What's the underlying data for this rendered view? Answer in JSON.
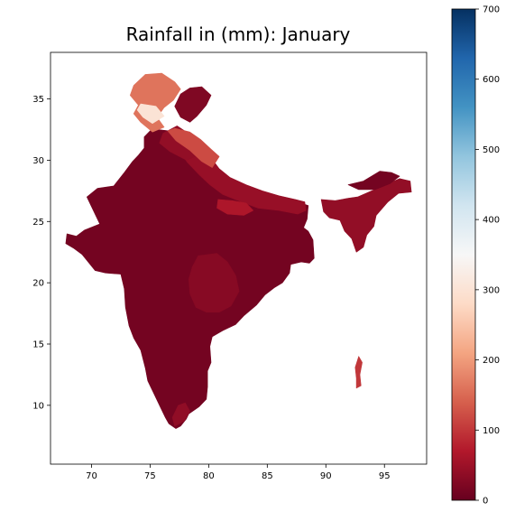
{
  "chart_data": {
    "type": "choropleth-map",
    "title": "Rainfall in (mm): January",
    "xlim": [
      66.5,
      98.6
    ],
    "ylim": [
      5.2,
      38.8
    ],
    "x_ticks": [
      70,
      75,
      80,
      85,
      90,
      95
    ],
    "y_ticks": [
      10,
      15,
      20,
      25,
      30,
      35
    ],
    "colorbar": {
      "colormap": "RdBu",
      "min": 0,
      "max": 700,
      "ticks": [
        0,
        100,
        200,
        300,
        400,
        500,
        600,
        700
      ]
    },
    "regions": [
      {
        "name": "",
        "value": 12,
        "outline": [
          [
            67.9,
            24.0
          ],
          [
            67.8,
            23.2
          ],
          [
            68.5,
            22.8
          ],
          [
            69.2,
            22.3
          ],
          [
            70.3,
            21.0
          ],
          [
            71.2,
            20.8
          ],
          [
            72.5,
            20.7
          ],
          [
            72.8,
            19.5
          ],
          [
            72.9,
            18.0
          ],
          [
            73.2,
            16.5
          ],
          [
            73.6,
            15.5
          ],
          [
            74.2,
            14.5
          ],
          [
            74.6,
            13.0
          ],
          [
            74.8,
            12.0
          ],
          [
            75.3,
            11.0
          ],
          [
            75.8,
            10.0
          ],
          [
            76.3,
            9.0
          ],
          [
            76.6,
            8.5
          ],
          [
            77.2,
            8.1
          ],
          [
            77.6,
            8.3
          ],
          [
            78.1,
            8.9
          ],
          [
            78.3,
            9.3
          ],
          [
            79.2,
            9.9
          ],
          [
            79.8,
            10.5
          ],
          [
            79.9,
            11.5
          ],
          [
            79.9,
            12.8
          ],
          [
            80.2,
            13.5
          ],
          [
            80.1,
            14.8
          ],
          [
            80.3,
            15.6
          ],
          [
            81.2,
            16.1
          ],
          [
            82.3,
            16.6
          ],
          [
            83.0,
            17.3
          ],
          [
            84.1,
            18.2
          ],
          [
            84.8,
            19.0
          ],
          [
            85.6,
            19.6
          ],
          [
            86.3,
            20.0
          ],
          [
            86.9,
            20.8
          ],
          [
            87.0,
            21.5
          ],
          [
            87.9,
            21.7
          ],
          [
            88.6,
            21.6
          ],
          [
            89.0,
            22.0
          ],
          [
            88.9,
            23.5
          ],
          [
            88.5,
            24.2
          ],
          [
            88.1,
            24.5
          ],
          [
            88.4,
            25.2
          ],
          [
            88.5,
            26.3
          ],
          [
            87.9,
            26.5
          ],
          [
            86.9,
            26.5
          ],
          [
            85.7,
            27.0
          ],
          [
            84.3,
            27.4
          ],
          [
            83.3,
            27.4
          ],
          [
            82.1,
            27.9
          ],
          [
            81.1,
            28.5
          ],
          [
            80.3,
            28.9
          ],
          [
            80.0,
            30.0
          ],
          [
            79.0,
            31.0
          ],
          [
            78.6,
            31.6
          ],
          [
            77.6,
            32.0
          ],
          [
            76.6,
            32.4
          ],
          [
            75.7,
            32.5
          ],
          [
            75.0,
            32.4
          ],
          [
            74.5,
            31.9
          ],
          [
            74.5,
            31.0
          ],
          [
            74.0,
            30.4
          ],
          [
            73.5,
            29.9
          ],
          [
            72.8,
            29.0
          ],
          [
            71.9,
            27.9
          ],
          [
            70.5,
            27.7
          ],
          [
            69.6,
            27.0
          ],
          [
            70.0,
            26.2
          ],
          [
            70.4,
            25.4
          ],
          [
            70.7,
            24.8
          ],
          [
            69.4,
            24.3
          ],
          [
            68.7,
            23.8
          ]
        ]
      },
      {
        "name": "",
        "value": 45,
        "outline": [
          [
            78.6,
            31.6
          ],
          [
            79.2,
            30.9
          ],
          [
            80.2,
            30.2
          ],
          [
            80.9,
            29.3
          ],
          [
            81.8,
            28.6
          ],
          [
            83.2,
            28.0
          ],
          [
            84.6,
            27.5
          ],
          [
            86.0,
            27.1
          ],
          [
            87.4,
            26.8
          ],
          [
            88.2,
            26.6
          ],
          [
            88.3,
            25.9
          ],
          [
            87.6,
            25.6
          ],
          [
            86.0,
            25.9
          ],
          [
            84.2,
            26.1
          ],
          [
            82.8,
            26.6
          ],
          [
            81.2,
            27.2
          ],
          [
            80.1,
            28.0
          ],
          [
            79.2,
            28.8
          ],
          [
            78.2,
            29.8
          ],
          [
            77.5,
            30.7
          ],
          [
            77.1,
            31.4
          ],
          [
            77.7,
            31.9
          ]
        ]
      },
      {
        "name": "",
        "value": 65,
        "outline": [
          [
            80.8,
            26.8
          ],
          [
            82.0,
            26.7
          ],
          [
            83.2,
            26.5
          ],
          [
            83.8,
            25.9
          ],
          [
            83.0,
            25.5
          ],
          [
            81.6,
            25.6
          ],
          [
            80.7,
            26.1
          ]
        ]
      },
      {
        "name": "",
        "value": 30,
        "outline": [
          [
            79.1,
            22.2
          ],
          [
            80.7,
            22.4
          ],
          [
            81.6,
            21.7
          ],
          [
            82.3,
            20.6
          ],
          [
            82.6,
            19.3
          ],
          [
            81.9,
            18.1
          ],
          [
            80.9,
            17.6
          ],
          [
            79.8,
            17.6
          ],
          [
            78.9,
            18.0
          ],
          [
            78.4,
            19.1
          ],
          [
            78.3,
            20.3
          ],
          [
            78.6,
            21.3
          ]
        ]
      },
      {
        "name": "",
        "value": 40,
        "outline": [
          [
            77.3,
            32.8
          ],
          [
            78.1,
            32.3
          ],
          [
            78.9,
            31.3
          ],
          [
            79.3,
            30.5
          ],
          [
            78.1,
            30.0
          ],
          [
            76.7,
            30.7
          ],
          [
            75.8,
            31.4
          ],
          [
            76.1,
            32.2
          ]
        ]
      },
      {
        "name": "",
        "value": 38,
        "outline": [
          [
            77.1,
            8.3
          ],
          [
            77.9,
            8.7
          ],
          [
            78.4,
            9.5
          ],
          [
            78.0,
            10.2
          ],
          [
            77.4,
            10.0
          ],
          [
            76.9,
            9.0
          ]
        ]
      },
      {
        "name": "",
        "value": 120,
        "outline": [
          [
            77.1,
            32.6
          ],
          [
            78.4,
            32.3
          ],
          [
            79.3,
            31.7
          ],
          [
            80.2,
            30.9
          ],
          [
            80.9,
            30.3
          ],
          [
            80.3,
            29.4
          ],
          [
            79.4,
            29.9
          ],
          [
            78.4,
            30.8
          ],
          [
            77.2,
            31.6
          ],
          [
            76.5,
            32.4
          ]
        ]
      },
      {
        "name": "",
        "value": 160,
        "outline": [
          [
            74.6,
            37.0
          ],
          [
            76.0,
            37.1
          ],
          [
            77.1,
            36.4
          ],
          [
            77.6,
            35.8
          ],
          [
            77.0,
            34.9
          ],
          [
            76.2,
            34.3
          ],
          [
            75.6,
            33.5
          ],
          [
            76.2,
            32.7
          ],
          [
            75.2,
            32.3
          ],
          [
            74.2,
            33.1
          ],
          [
            73.6,
            33.8
          ],
          [
            74.0,
            34.5
          ],
          [
            73.3,
            35.3
          ],
          [
            73.6,
            36.1
          ]
        ]
      },
      {
        "name": "",
        "value": 300,
        "outline": [
          [
            74.2,
            34.6
          ],
          [
            75.5,
            34.4
          ],
          [
            76.2,
            33.6
          ],
          [
            75.2,
            33.0
          ],
          [
            74.4,
            33.5
          ],
          [
            73.9,
            34.1
          ]
        ]
      },
      {
        "name": "",
        "value": 22,
        "outline": [
          [
            77.6,
            35.4
          ],
          [
            78.4,
            35.9
          ],
          [
            79.4,
            36.0
          ],
          [
            80.2,
            35.3
          ],
          [
            79.8,
            34.5
          ],
          [
            79.0,
            33.6
          ],
          [
            78.4,
            33.1
          ],
          [
            77.6,
            33.5
          ],
          [
            77.1,
            34.4
          ]
        ]
      },
      {
        "name": "",
        "value": 40,
        "outline": [
          [
            89.6,
            26.8
          ],
          [
            90.8,
            26.7
          ],
          [
            91.9,
            26.9
          ],
          [
            92.7,
            27.0
          ],
          [
            93.9,
            27.5
          ],
          [
            95.1,
            28.0
          ],
          [
            96.3,
            28.5
          ],
          [
            97.2,
            28.3
          ],
          [
            97.3,
            27.4
          ],
          [
            96.2,
            27.3
          ],
          [
            95.3,
            26.6
          ],
          [
            94.3,
            25.5
          ],
          [
            94.1,
            24.6
          ],
          [
            93.5,
            23.9
          ],
          [
            93.2,
            22.9
          ],
          [
            92.6,
            22.5
          ],
          [
            92.2,
            23.6
          ],
          [
            91.6,
            24.2
          ],
          [
            91.2,
            25.1
          ],
          [
            90.3,
            25.3
          ],
          [
            89.8,
            25.8
          ]
        ]
      },
      {
        "name": "",
        "value": 12,
        "outline": [
          [
            91.9,
            28.0
          ],
          [
            93.2,
            28.3
          ],
          [
            94.6,
            29.1
          ],
          [
            95.6,
            29.0
          ],
          [
            96.3,
            28.7
          ],
          [
            95.5,
            28.1
          ],
          [
            94.2,
            27.6
          ],
          [
            92.8,
            27.6
          ]
        ]
      },
      {
        "name": "",
        "value": 100,
        "outline": [
          [
            92.8,
            14.0
          ],
          [
            93.1,
            13.5
          ],
          [
            92.9,
            12.5
          ],
          [
            93.0,
            11.6
          ],
          [
            92.6,
            11.4
          ],
          [
            92.6,
            12.2
          ],
          [
            92.5,
            13.1
          ]
        ]
      }
    ]
  }
}
